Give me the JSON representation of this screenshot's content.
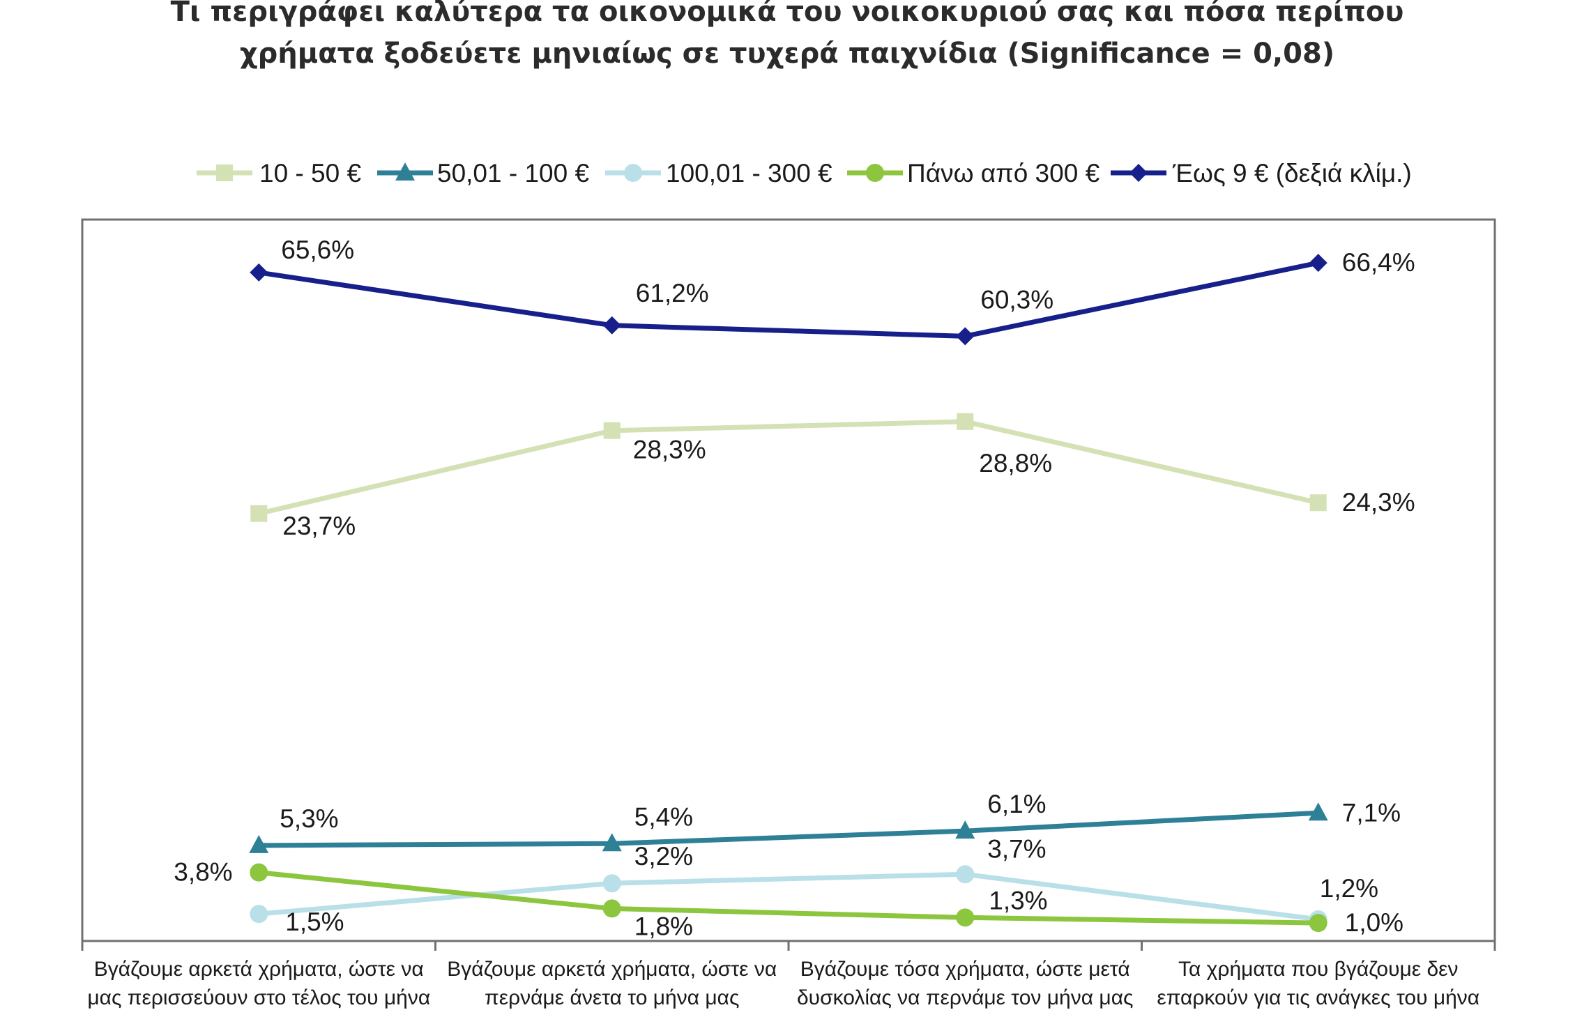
{
  "chart_data": {
    "type": "line",
    "title_lines": [
      "Τι περιγράφει καλύτερα τα οικονομικά του νοικοκυριού σας και πόσα περίπου",
      "χρήματα ξοδεύετε μηνιαίως σε τυχερά παιχνίδια (Significance = 0,08)"
    ],
    "categories": [
      [
        "Βγάζουμε αρκετά χρήματα, ώστε να",
        "μας περισσεύουν στο τέλος του μήνα"
      ],
      [
        "Βγάζουμε αρκετά χρήματα, ώστε να",
        "περνάμε άνετα το μήνα μας"
      ],
      [
        "Βγάζουμε τόσα χρήματα, ώστε μετά",
        "δυσκολίας να  περνάμε τον μήνα μας"
      ],
      [
        "Τα χρήματα που βγάζουμε δεν",
        "επαρκούν για τις ανάγκες του μήνα"
      ]
    ],
    "series": [
      {
        "name": "10 - 50 €",
        "values": [
          23.7,
          28.3,
          28.8,
          24.3
        ],
        "labels": [
          "23,7%",
          "28,3%",
          "28,8%",
          "24,3%"
        ],
        "color": "#d4e1b4",
        "marker": "square",
        "axis": "left"
      },
      {
        "name": "50,01 - 100 €",
        "values": [
          5.3,
          5.4,
          6.1,
          7.1
        ],
        "labels": [
          "5,3%",
          "5,4%",
          "6,1%",
          "7,1%"
        ],
        "color": "#2e8096",
        "marker": "triangle",
        "axis": "left"
      },
      {
        "name": "100,01 - 300 €",
        "values": [
          1.5,
          3.2,
          3.7,
          1.2
        ],
        "labels": [
          "1,5%",
          "3,2%",
          "3,7%",
          "1,2%"
        ],
        "color": "#b9dfe9",
        "marker": "circle",
        "axis": "left"
      },
      {
        "name": "Πάνω από 300 €",
        "values": [
          3.8,
          1.8,
          1.3,
          1.0
        ],
        "labels": [
          "3,8%",
          "1,8%",
          "1,3%",
          "1,0%"
        ],
        "color": "#8cc63f",
        "marker": "circle",
        "axis": "left"
      },
      {
        "name": "Έως 9 € (δεξιά κλίμ.)",
        "values": [
          65.6,
          61.2,
          60.3,
          66.4
        ],
        "labels": [
          "65,6%",
          "61,2%",
          "60,3%",
          "66,4%"
        ],
        "color": "#17208a",
        "marker": "diamond",
        "axis": "right"
      }
    ],
    "ylim_left": [
      0,
      40
    ],
    "ylim_right": [
      10,
      70
    ],
    "axes_visible": false,
    "grid": false,
    "legend_position": "top"
  }
}
